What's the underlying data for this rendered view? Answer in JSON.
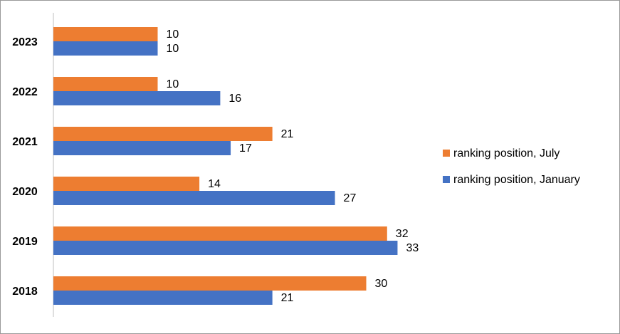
{
  "chart_data": {
    "type": "bar",
    "orientation": "horizontal",
    "categories": [
      "2023",
      "2022",
      "2021",
      "2020",
      "2019",
      "2018"
    ],
    "series": [
      {
        "name": "ranking position, July",
        "color": "#ED7D31",
        "values": [
          10,
          10,
          21,
          14,
          32,
          30
        ]
      },
      {
        "name": "ranking position, January",
        "color": "#4472C4",
        "values": [
          10,
          16,
          17,
          27,
          33,
          21
        ]
      }
    ],
    "data_labels": true,
    "legend": "right"
  }
}
